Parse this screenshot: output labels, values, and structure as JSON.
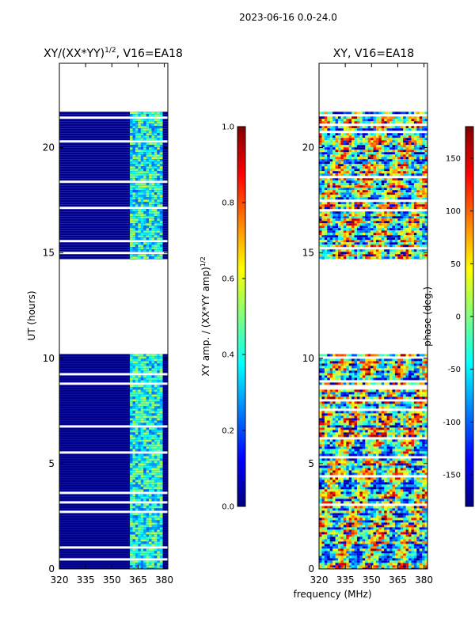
{
  "suptitle": "2023-06-16 0.0-24.0",
  "chart_data": [
    {
      "type": "heatmap",
      "title": "XY/(XX*YY)^(1/2), V16=EA18",
      "title_main": "XY/(XX*YY)",
      "title_exp": "1/2",
      "title_tail": ", V16=EA18",
      "xlabel": "",
      "ylabel": "UT (hours)",
      "xlim": [
        320,
        382
      ],
      "ylim": [
        0,
        24
      ],
      "xticks": [
        "320",
        "335",
        "350",
        "365",
        "380"
      ],
      "yticks": [
        "0",
        "5",
        "10",
        "15",
        "20"
      ],
      "data_bands_hours": [
        [
          0,
          10.2
        ],
        [
          14.7,
          21.7
        ]
      ],
      "colorbar": {
        "label": "XY amp. / (XX*YY amp)^(1/2)",
        "label_main": "XY amp. / (XX*YY amp)",
        "label_exp": "1/2",
        "range": [
          0.0,
          1.0
        ],
        "ticks": [
          "0.0",
          "0.2",
          "0.4",
          "0.6",
          "0.8",
          "1.0"
        ],
        "colormap": "jet"
      }
    },
    {
      "type": "heatmap",
      "title": "XY, V16=EA18",
      "xlabel": "frequency (MHz)",
      "ylabel": "",
      "xlim": [
        320,
        382
      ],
      "ylim": [
        0,
        24
      ],
      "xticks": [
        "320",
        "335",
        "350",
        "365",
        "380"
      ],
      "yticks": [
        "0",
        "5",
        "10",
        "15",
        "20"
      ],
      "data_bands_hours": [
        [
          0,
          10.2
        ],
        [
          14.7,
          21.7
        ]
      ],
      "colorbar": {
        "label": "phase (deg.)",
        "range": [
          -180,
          180
        ],
        "ticks": [
          "-150",
          "-100",
          "-50",
          "0",
          "50",
          "100",
          "150"
        ],
        "colormap": "jet"
      }
    }
  ]
}
